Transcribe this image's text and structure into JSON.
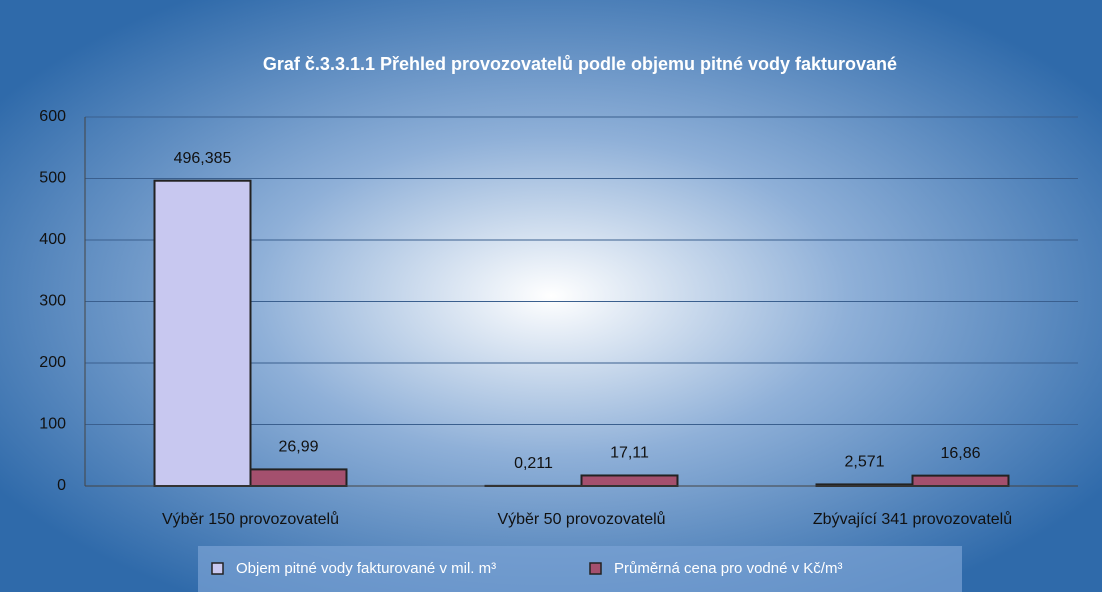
{
  "chart_data": {
    "type": "bar",
    "title": "Graf č.3.3.1.1 Přehled provozovatelů podle objemu pitné vody fakturované",
    "categories": [
      "Výběr 150 provozovatelů",
      "Výběr 50 provozovatelů",
      "Zbývající 341 provozovatelů"
    ],
    "series": [
      {
        "name": "Objem pitné vody fakturované v mil. m³",
        "color": "#c8c8f0",
        "values": [
          496.385,
          0.211,
          2.571
        ],
        "value_labels": [
          "496,385",
          "0,211",
          "2,571"
        ]
      },
      {
        "name": "Průměrná cena pro vodné v Kč/m³",
        "color": "#a4506e",
        "values": [
          26.99,
          17.11,
          16.86
        ],
        "value_labels": [
          "26,99",
          "17,11",
          "16,86"
        ]
      }
    ],
    "ylim": [
      0,
      600
    ],
    "yticks": [
      0,
      100,
      200,
      300,
      400,
      500,
      600
    ],
    "grid": true,
    "legend": "bottom"
  }
}
